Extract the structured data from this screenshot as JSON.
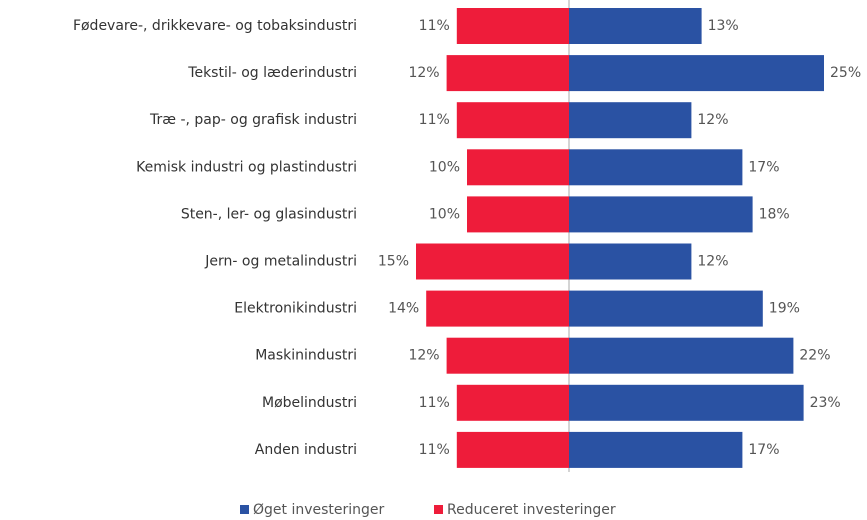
{
  "chart_data": {
    "type": "diverging-bar",
    "categories": [
      "Fødevare-, drikkevare- og tobaksindustri",
      "Tekstil- og læderindustri",
      "Træ -, pap- og grafisk industri",
      "Kemisk industri og plastindustri",
      "Sten-, ler- og glasindustri",
      "Jern- og metalindustri",
      "Elektronikindustri",
      "Maskinindustri",
      "Møbelindustri",
      "Anden industri"
    ],
    "series": [
      {
        "name": "Øget investeringer",
        "color": "#2a52a3",
        "values": [
          13,
          25,
          12,
          17,
          18,
          12,
          19,
          22,
          23,
          17
        ],
        "value_labels": [
          "13%",
          "25%",
          "12%",
          "17%",
          "18%",
          "12%",
          "19%",
          "22%",
          "23%",
          "17%"
        ]
      },
      {
        "name": "Reduceret investeringer",
        "color": "#ee1c3a",
        "values": [
          11,
          12,
          11,
          10,
          10,
          15,
          14,
          12,
          11,
          11
        ],
        "value_labels": [
          "11%",
          "12%",
          "11%",
          "10%",
          "10%",
          "15%",
          "14%",
          "12%",
          "11%",
          "11%"
        ]
      }
    ]
  }
}
